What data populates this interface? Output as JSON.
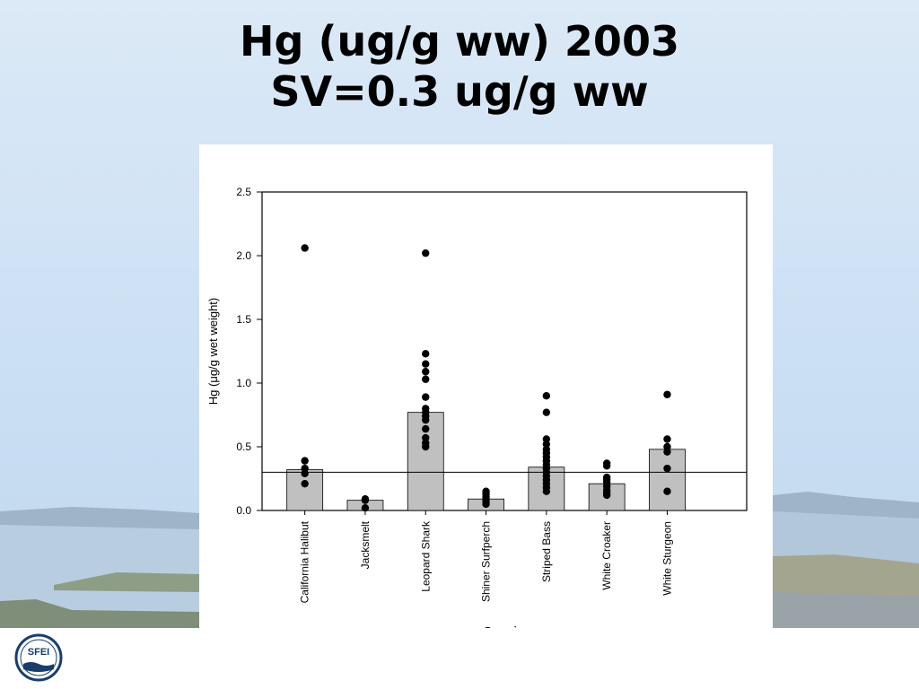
{
  "slide": {
    "title_line1": "Hg (ug/g ww) 2003",
    "title_line2": "SV=0.3 ug/g ww"
  },
  "logo": {
    "text": "SFEI"
  },
  "colors": {
    "bar_fill": "#c0c0c0",
    "point": "#000000",
    "background": "#cfe2f5"
  },
  "chart_data": {
    "type": "bar",
    "xlabel": "Species",
    "ylabel": "Hg (μg/g wet weight)",
    "ylim": [
      0,
      2.5
    ],
    "yticks": [
      "0.0",
      "0.5",
      "1.0",
      "1.5",
      "2.0",
      "2.5"
    ],
    "categories": [
      "California Halibut",
      "Jacksmelt",
      "Leopard Shark",
      "Shiner Surfperch",
      "Striped Bass",
      "White Croaker",
      "White Sturgeon"
    ],
    "values": [
      0.32,
      0.08,
      0.77,
      0.09,
      0.34,
      0.21,
      0.48
    ],
    "points": [
      [
        2.06,
        0.39,
        0.33,
        0.29,
        0.21
      ],
      [
        0.09,
        0.08,
        0.02
      ],
      [
        2.02,
        1.23,
        1.15,
        1.09,
        1.03,
        0.89,
        0.8,
        0.77,
        0.74,
        0.71,
        0.64,
        0.57,
        0.53,
        0.5
      ],
      [
        0.15,
        0.13,
        0.11,
        0.09,
        0.07,
        0.05
      ],
      [
        0.9,
        0.77,
        0.56,
        0.52,
        0.48,
        0.45,
        0.42,
        0.39,
        0.36,
        0.33,
        0.3,
        0.27,
        0.24,
        0.21,
        0.18,
        0.15
      ],
      [
        0.37,
        0.35,
        0.26,
        0.24,
        0.22,
        0.19,
        0.16,
        0.14,
        0.12
      ],
      [
        0.91,
        0.56,
        0.5,
        0.46,
        0.33,
        0.15
      ]
    ],
    "reference_line": 0.3,
    "grid": false
  }
}
